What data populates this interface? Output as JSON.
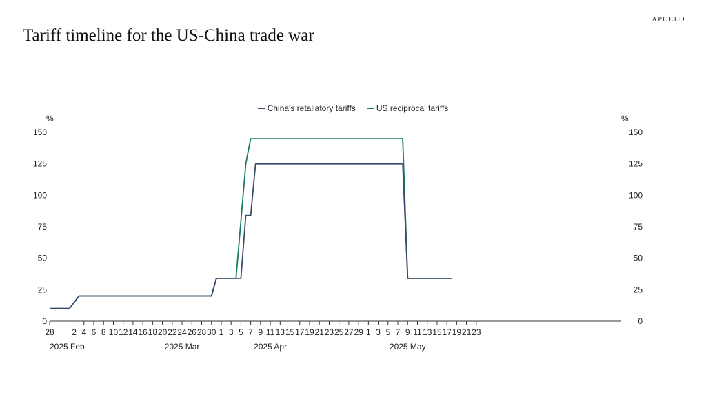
{
  "header": {
    "brand": "APOLLO",
    "title": "Tariff timeline for the US-China trade war"
  },
  "colors": {
    "china": "#3b4a6b",
    "us": "#1a7a66",
    "axis": "#333333"
  },
  "chart_data": {
    "type": "line",
    "title": "Tariff timeline for the US-China trade war",
    "y_unit_left": "%",
    "y_unit_right": "%",
    "ylim": [
      0,
      150
    ],
    "y_ticks": [
      0,
      25,
      50,
      75,
      100,
      125,
      150
    ],
    "x_range": [
      "2025-01-28",
      "2025-05-23"
    ],
    "x_tick_labels": [
      {
        "date": "2025-01-28",
        "label": "28"
      },
      {
        "date": "2025-02-02",
        "label": "2"
      },
      {
        "date": "2025-02-04",
        "label": "4"
      },
      {
        "date": "2025-02-06",
        "label": "6"
      },
      {
        "date": "2025-02-08",
        "label": "8"
      },
      {
        "date": "2025-02-10",
        "label": "10"
      },
      {
        "date": "2025-02-12",
        "label": "12"
      },
      {
        "date": "2025-02-14",
        "label": "14"
      },
      {
        "date": "2025-02-16",
        "label": "16"
      },
      {
        "date": "2025-02-18",
        "label": "18"
      },
      {
        "date": "2025-02-20",
        "label": "20"
      },
      {
        "date": "2025-02-22",
        "label": "22"
      },
      {
        "date": "2025-02-24",
        "label": "24"
      },
      {
        "date": "2025-02-26",
        "label": "26"
      },
      {
        "date": "2025-02-28",
        "label": "28"
      },
      {
        "date": "2025-03-02",
        "label": "30"
      },
      {
        "date": "2025-03-04",
        "label": "1"
      },
      {
        "date": "2025-03-06",
        "label": "3"
      },
      {
        "date": "2025-03-08",
        "label": "5"
      },
      {
        "date": "2025-03-10",
        "label": "7"
      },
      {
        "date": "2025-03-12",
        "label": "9"
      },
      {
        "date": "2025-03-14",
        "label": "11"
      },
      {
        "date": "2025-03-16",
        "label": "13"
      },
      {
        "date": "2025-03-18",
        "label": "15"
      },
      {
        "date": "2025-03-20",
        "label": "17"
      },
      {
        "date": "2025-03-22",
        "label": "19"
      },
      {
        "date": "2025-03-24",
        "label": "21"
      },
      {
        "date": "2025-03-26",
        "label": "23"
      },
      {
        "date": "2025-03-28",
        "label": "25"
      },
      {
        "date": "2025-03-30",
        "label": "27"
      },
      {
        "date": "2025-04-01",
        "label": "29"
      },
      {
        "date": "2025-04-03",
        "label": "1"
      },
      {
        "date": "2025-04-05",
        "label": "3"
      },
      {
        "date": "2025-04-07",
        "label": "5"
      },
      {
        "date": "2025-04-09",
        "label": "7"
      },
      {
        "date": "2025-04-11",
        "label": "9"
      },
      {
        "date": "2025-04-13",
        "label": "11"
      },
      {
        "date": "2025-04-15",
        "label": "13"
      },
      {
        "date": "2025-04-17",
        "label": "15"
      },
      {
        "date": "2025-04-19",
        "label": "17"
      },
      {
        "date": "2025-04-21",
        "label": "19"
      },
      {
        "date": "2025-04-23",
        "label": "21"
      },
      {
        "date": "2025-04-25",
        "label": "23"
      }
    ],
    "x_group_labels": [
      {
        "date": "2025-01-28",
        "label": "2025 Feb"
      },
      {
        "date": "2025-02-24",
        "label": "2025 Mar"
      },
      {
        "date": "2025-03-14",
        "label": "2025 Apr"
      },
      {
        "date": "2025-04-11",
        "label": "2025 May"
      }
    ],
    "legend_position": "top-center",
    "grid": false,
    "series": [
      {
        "name": "China's retaliatory tariffs",
        "color": "#3b4a6b",
        "points": [
          [
            "2025-01-28",
            10
          ],
          [
            "2025-02-01",
            10
          ],
          [
            "2025-02-03",
            20
          ],
          [
            "2025-03-02",
            20
          ],
          [
            "2025-03-03",
            34
          ],
          [
            "2025-03-08",
            34
          ],
          [
            "2025-03-09",
            84
          ],
          [
            "2025-03-10",
            84
          ],
          [
            "2025-03-11",
            125
          ],
          [
            "2025-04-10",
            125
          ],
          [
            "2025-04-11",
            34
          ],
          [
            "2025-04-20",
            34
          ]
        ]
      },
      {
        "name": "US reciprocal tariffs",
        "color": "#1a7a66",
        "points": [
          [
            "2025-01-28",
            10
          ],
          [
            "2025-02-01",
            10
          ],
          [
            "2025-02-03",
            20
          ],
          [
            "2025-03-02",
            20
          ],
          [
            "2025-03-03",
            34
          ],
          [
            "2025-03-07",
            34
          ],
          [
            "2025-03-09",
            125
          ],
          [
            "2025-03-10",
            145
          ],
          [
            "2025-04-10",
            145
          ],
          [
            "2025-04-11",
            34
          ],
          [
            "2025-04-20",
            34
          ]
        ]
      }
    ]
  }
}
